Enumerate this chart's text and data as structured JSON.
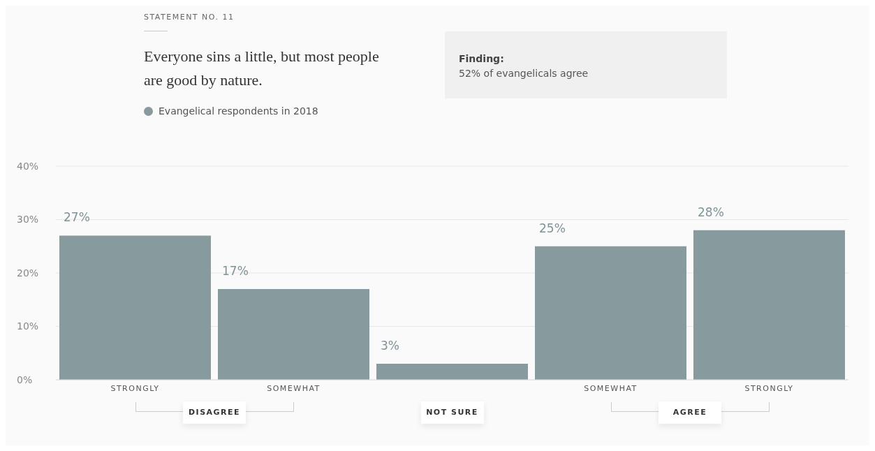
{
  "chart_data": {
    "type": "bar",
    "title": "Everyone sins a little, but most people are good by nature.",
    "categories": [
      "STRONGLY",
      "SOMEWHAT",
      null,
      "SOMEWHAT",
      "STRONGLY"
    ],
    "series": [
      {
        "name": "Evangelical respondents in 2018",
        "color": "#879a9e",
        "values": [
          27,
          17,
          3,
          25,
          28
        ],
        "value_labels": [
          "27%",
          "17%",
          "3%",
          "25%",
          "28%"
        ]
      }
    ],
    "ylim": [
      0,
      40
    ],
    "yticks": [
      {
        "value": 0,
        "label": "0%"
      },
      {
        "value": 10,
        "label": "10%"
      },
      {
        "value": 20,
        "label": "20%"
      },
      {
        "value": 30,
        "label": "30%"
      },
      {
        "value": 40,
        "label": "40%"
      }
    ],
    "grid": "y",
    "legend": "top left",
    "annotations": [
      "STATEMENT NO. 11",
      "Finding:",
      "52% of evangelicals agree",
      "DISAGREE",
      "NOT SURE",
      "AGREE"
    ]
  }
}
